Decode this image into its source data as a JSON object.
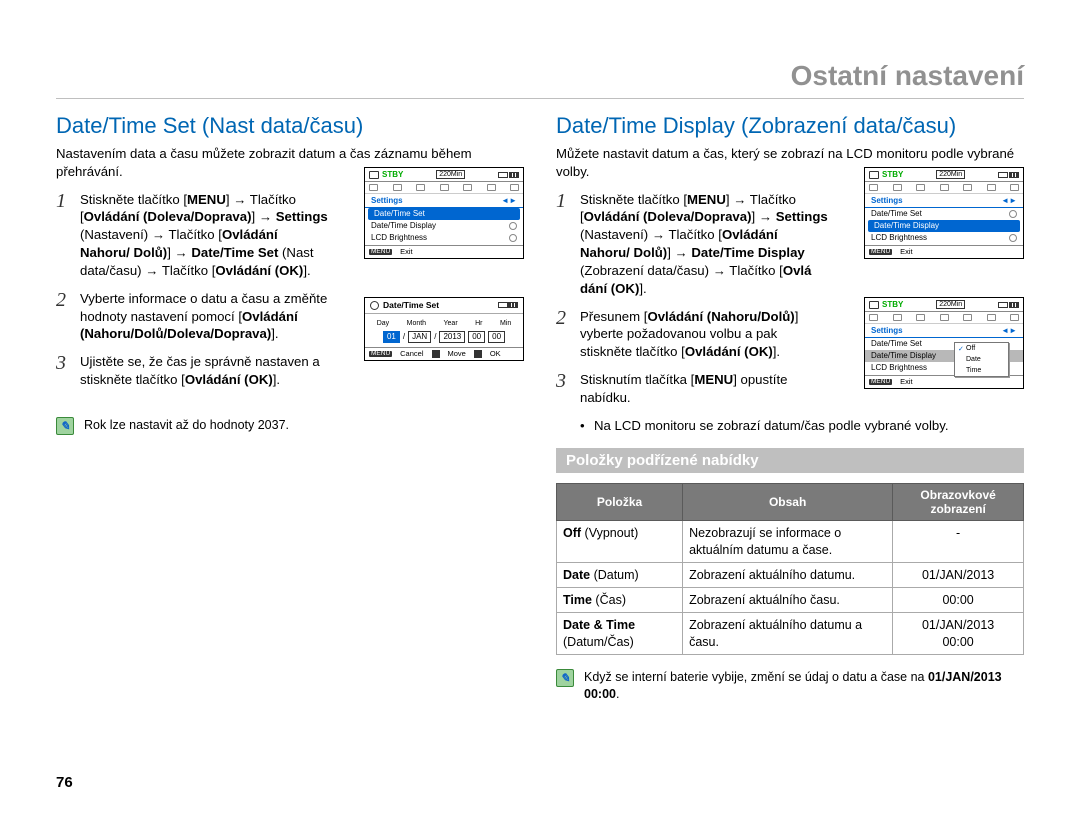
{
  "chapter": "Ostatní nastavení",
  "page_number": "76",
  "left": {
    "title": "Date/Time Set (Nast data/času)",
    "intro": "Nastavením data a času můžete zobrazit datum a čas záznamu během přehrávání.",
    "steps": [
      {
        "n": "1",
        "html": "Stiskněte tlačítko [<b>MENU</b>] <span class='arrow'>→</span> Tlačítko [<b>Ovládání (Doleva/Doprava)</b>] <span class='arrow'>→</span> <b>Settings</b> (Nastavení) <span class='arrow'>→</span> Tlačítko [<b>Ovládání Nahoru/ Dolů)</b>] <span class='arrow'>→</span> <b>Date/Time Set</b> (Nast data/času) <span class='arrow'>→</span> Tlačítko [<b>Ovládání (OK)</b>]."
      },
      {
        "n": "2",
        "html": "Vyberte informace o datu a času a změňte hodnoty nastavení pomocí [<b>Ovládání (Nahoru/Dolů/Doleva/Doprava)</b>]."
      },
      {
        "n": "3",
        "html": "Ujistěte se, že čas je správně nastaven a stiskněte tlačítko [<b>Ovládání (OK)</b>]."
      }
    ],
    "note": "Rok lze nastavit až do hodnoty 2037.",
    "screen1": {
      "stby": "STBY",
      "min": "220Min",
      "settings": "Settings",
      "items": [
        "Date/Time Set",
        "Date/Time Display",
        "LCD Brightness"
      ],
      "sel_index": 0,
      "exit": "Exit"
    },
    "screen2": {
      "title": "Date/Time Set",
      "labels": [
        "Day",
        "Month",
        "Year",
        "Hr",
        "Min"
      ],
      "values": [
        "01",
        "JAN",
        "2013",
        "00",
        "00"
      ],
      "buttons": [
        "Cancel",
        "Move",
        "OK"
      ]
    }
  },
  "right": {
    "title": "Date/Time Display (Zobrazení data/času)",
    "intro": "Můžete nastavit datum a čas, který se zobrazí na LCD monitoru podle vybrané volby.",
    "steps": [
      {
        "n": "1",
        "html": "Stiskněte tlačítko [<b>MENU</b>] <span class='arrow'>→</span> Tlačítko [<b>Ovládání (Doleva/Doprava)</b>] <span class='arrow'>→</span> <b>Settings</b> (Nastavení) <span class='arrow'>→</span> Tlačítko [<b>Ovládání Nahoru/ Dolů)</b>] <span class='arrow'>→</span> <b>Date/Time Display</b> (Zobrazení data/času) <span class='arrow'>→</span> Tlačítko [<b>Ovlá dání (OK)</b>]."
      },
      {
        "n": "2",
        "html": "Přesunem [<b>Ovládání (Nahoru/Dolů)</b>] vyberte požadovanou volbu a pak stiskněte tlačítko [<b>Ovládání (OK)</b>]."
      },
      {
        "n": "3",
        "html": "Stisknutím tlačítka [<b>MENU</b>] opustíte nabídku."
      }
    ],
    "bullet": "Na LCD monitoru se zobrazí datum/čas podle vybrané volby.",
    "sub_heading": "Položky podřízené nabídky",
    "table": {
      "headers": [
        "Položka",
        "Obsah",
        "Obrazovkové zobrazení"
      ],
      "rows": [
        [
          "<b>Off</b> (Vypnout)",
          "Nezobrazují se informace o aktuálním datumu a čase.",
          "-"
        ],
        [
          "<b>Date</b> (Datum)",
          "Zobrazení aktuálního datumu.",
          "01/JAN/2013"
        ],
        [
          "<b>Time</b> (Čas)",
          "Zobrazení aktuálního času.",
          "00:00"
        ],
        [
          "<b>Date & Time</b> (Datum/Čas)",
          "Zobrazení aktuálního datumu a času.",
          "01/JAN/2013<br>00:00"
        ]
      ]
    },
    "note": "Když se interní baterie vybije, změní se údaj o datu a čase na <b>01/JAN/2013 00:00</b>.",
    "screen1": {
      "stby": "STBY",
      "min": "220Min",
      "settings": "Settings",
      "items": [
        "Date/Time Set",
        "Date/Time Display",
        "LCD Brightness"
      ],
      "sel_index": 1,
      "exit": "Exit"
    },
    "screen2": {
      "stby": "STBY",
      "min": "220Min",
      "settings": "Settings",
      "items": [
        "Date/Time Set",
        "Date/Time Display",
        "LCD Brightness"
      ],
      "sel_index": 1,
      "exit": "Exit",
      "popup": [
        "Off",
        "Date",
        "Time"
      ]
    }
  }
}
